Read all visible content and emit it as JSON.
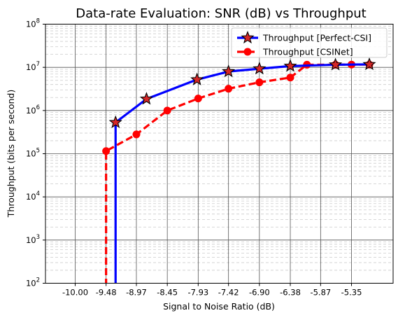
{
  "chart_data": {
    "type": "line",
    "title": "Data-rate Evaluation: SNR (dB) vs Throughput",
    "xlabel": "Signal to Noise Ratio (dB)",
    "ylabel": "Throughput (bits per second)",
    "x_tick_labels": [
      "-10.00",
      "-9.48",
      "-8.97",
      "-8.45",
      "-7.93",
      "-7.42",
      "-6.90",
      "-6.38",
      "-5.87",
      "-5.35"
    ],
    "xlim": [
      -10.5,
      -4.65
    ],
    "y_scale": "log",
    "ylim": [
      100,
      100000000
    ],
    "y_tick_labels": [
      {
        "base": "10",
        "exp": "2"
      },
      {
        "base": "10",
        "exp": "3"
      },
      {
        "base": "10",
        "exp": "4"
      },
      {
        "base": "10",
        "exp": "5"
      },
      {
        "base": "10",
        "exp": "6"
      },
      {
        "base": "10",
        "exp": "7"
      },
      {
        "base": "10",
        "exp": "8"
      }
    ],
    "grid": {
      "major": true,
      "minor": true
    },
    "legend_position": "top-right",
    "series": [
      {
        "name": "Throughput [Perfect-CSI]",
        "color": "#0000ff",
        "line_style": "solid",
        "marker": "star",
        "marker_color": "#d62728",
        "points": [
          {
            "x": -9.32,
            "y": 50,
            "marker": false
          },
          {
            "x": -9.32,
            "y": 530000,
            "marker": true
          },
          {
            "x": -8.8,
            "y": 1850000,
            "marker": true
          },
          {
            "x": -7.95,
            "y": 5200000,
            "marker": true
          },
          {
            "x": -7.42,
            "y": 8000000,
            "marker": true
          },
          {
            "x": -6.9,
            "y": 9300000,
            "marker": true
          },
          {
            "x": -6.38,
            "y": 10700000,
            "marker": true
          },
          {
            "x": -5.62,
            "y": 11500000,
            "marker": true
          },
          {
            "x": -5.05,
            "y": 11700000,
            "marker": true
          }
        ]
      },
      {
        "name": "Throughput [CSINet]",
        "color": "#ff0000",
        "line_style": "dashed",
        "marker": "circle",
        "marker_color": "#ff0000",
        "points": [
          {
            "x": -9.48,
            "y": 50,
            "marker": false
          },
          {
            "x": -9.48,
            "y": 115000,
            "marker": true
          },
          {
            "x": -8.97,
            "y": 280000,
            "marker": true
          },
          {
            "x": -8.45,
            "y": 1000000,
            "marker": true
          },
          {
            "x": -7.93,
            "y": 1900000,
            "marker": true
          },
          {
            "x": -7.42,
            "y": 3200000,
            "marker": true
          },
          {
            "x": -6.9,
            "y": 4500000,
            "marker": true
          },
          {
            "x": -6.38,
            "y": 5800000,
            "marker": true
          },
          {
            "x": -6.1,
            "y": 11500000,
            "marker": true
          },
          {
            "x": -5.62,
            "y": 11500000,
            "marker": true
          },
          {
            "x": -5.35,
            "y": 11600000,
            "marker": true
          },
          {
            "x": -5.05,
            "y": 11600000,
            "marker": true
          }
        ]
      }
    ]
  }
}
